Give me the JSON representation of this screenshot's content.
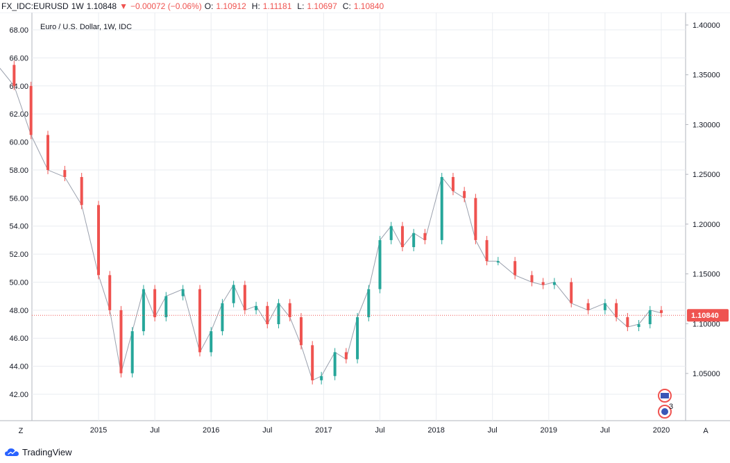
{
  "header": {
    "symbol": "FX_IDC:EURUSD",
    "interval": "1W",
    "last": "1.10848",
    "change": "−0.00072 (−0.06%)",
    "open_label": "O:",
    "open": "1.10912",
    "high_label": "H:",
    "high": "1.11181",
    "low_label": "L:",
    "low": "1.10697",
    "close_label": "C:",
    "close": "1.10840"
  },
  "corner_left": "Z",
  "corner_right": "A",
  "branding": "TradingView",
  "price_tag": "1.10840",
  "colors": {
    "up": "#26a69a",
    "down": "#ef5350",
    "grid": "#e9ecf1",
    "text": "#131722"
  },
  "chart_data": [
    {
      "type": "line",
      "title": "Euro / U.S. Dollar, 1W, IDC",
      "ylabel": "",
      "ylim": [
        41.0,
        69.0
      ],
      "yticks": [
        "68.00",
        "66.00",
        "64.00",
        "62.00",
        "60.00",
        "58.00",
        "56.00",
        "54.00",
        "52.00",
        "50.00",
        "48.00",
        "46.00",
        "44.00",
        "42.00"
      ],
      "xticks": [
        "2015",
        "Jul",
        "2016",
        "Jul",
        "2017",
        "Jul",
        "2018",
        "Jul",
        "2019",
        "Jul",
        "2020"
      ],
      "series": [
        {
          "x": [
            2014.1,
            2014.25,
            2014.4,
            2014.55,
            2014.7,
            2014.85,
            2015.0,
            2015.1,
            2015.2,
            2015.3,
            2015.4,
            2015.5,
            2015.6,
            2015.75,
            2015.9,
            2016.0,
            2016.1,
            2016.2,
            2016.3,
            2016.4,
            2016.5,
            2016.6,
            2016.7,
            2016.8,
            2016.9,
            2016.98,
            2017.1,
            2017.2,
            2017.3,
            2017.4,
            2017.5,
            2017.6,
            2017.7,
            2017.8,
            2017.9,
            2018.05,
            2018.15,
            2018.25,
            2018.35,
            2018.45,
            2018.55,
            2018.7,
            2018.85,
            2018.95,
            2019.05,
            2019.2,
            2019.35,
            2019.5,
            2019.6,
            2019.7,
            2019.8,
            2019.9,
            2020.0
          ],
          "values": [
            65.5,
            64.0,
            60.5,
            58.0,
            57.5,
            55.5,
            50.5,
            48.0,
            43.5,
            46.5,
            49.5,
            47.5,
            49.0,
            49.5,
            45.0,
            46.5,
            48.5,
            49.8,
            48.0,
            48.3,
            47.0,
            48.5,
            47.5,
            45.5,
            43.0,
            43.3,
            45.0,
            44.5,
            47.5,
            49.5,
            53.0,
            54.0,
            52.5,
            53.5,
            53.0,
            57.5,
            56.5,
            56.0,
            53.0,
            51.5,
            51.5,
            50.5,
            50.0,
            49.8,
            50.0,
            48.5,
            48.0,
            48.5,
            47.5,
            46.8,
            47.0,
            48.0,
            47.8
          ]
        }
      ]
    },
    {
      "type": "line",
      "ylabel": "",
      "ylim": [
        1.0,
        1.42
      ],
      "yticks": [
        "1.40000",
        "1.35000",
        "1.30000",
        "1.25000",
        "1.20000",
        "1.15000",
        "1.10000",
        "1.05000"
      ],
      "last_value": 1.1084
    }
  ]
}
